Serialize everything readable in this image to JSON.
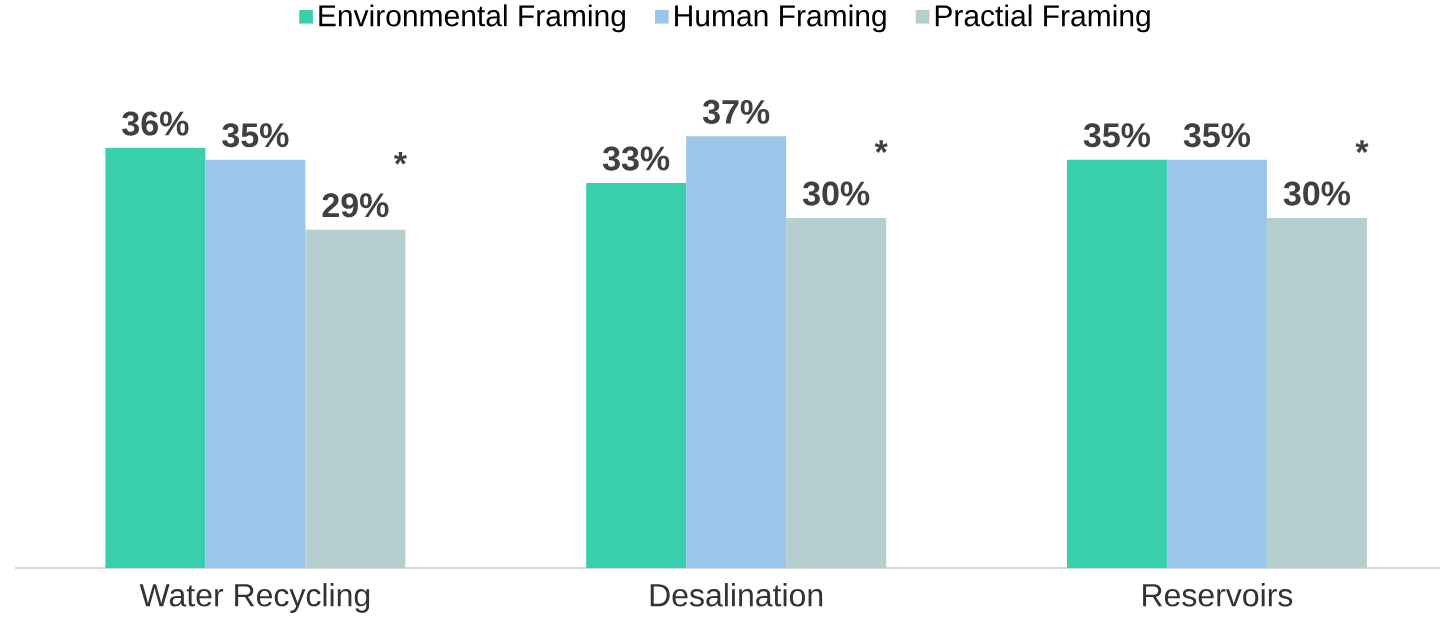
{
  "chart_data": {
    "type": "bar",
    "categories": [
      "Water Recycling",
      "Desalination",
      "Reservoirs"
    ],
    "series": [
      {
        "name": "Environmental Framing",
        "color": "#38d0ac",
        "values": [
          36,
          33,
          35
        ],
        "value_labels": [
          "36%",
          "33%",
          "35%"
        ]
      },
      {
        "name": "Human Framing",
        "color": "#9bc6ea",
        "values": [
          35,
          37,
          35
        ],
        "value_labels": [
          "35%",
          "37%",
          "35%"
        ]
      },
      {
        "name": "Practial Framing",
        "color": "#b5cece",
        "values": [
          29,
          30,
          30
        ],
        "value_labels": [
          "29%",
          "30%",
          "30%"
        ]
      }
    ],
    "annotations": [
      "*",
      "*",
      "*"
    ],
    "legend": "top"
  }
}
